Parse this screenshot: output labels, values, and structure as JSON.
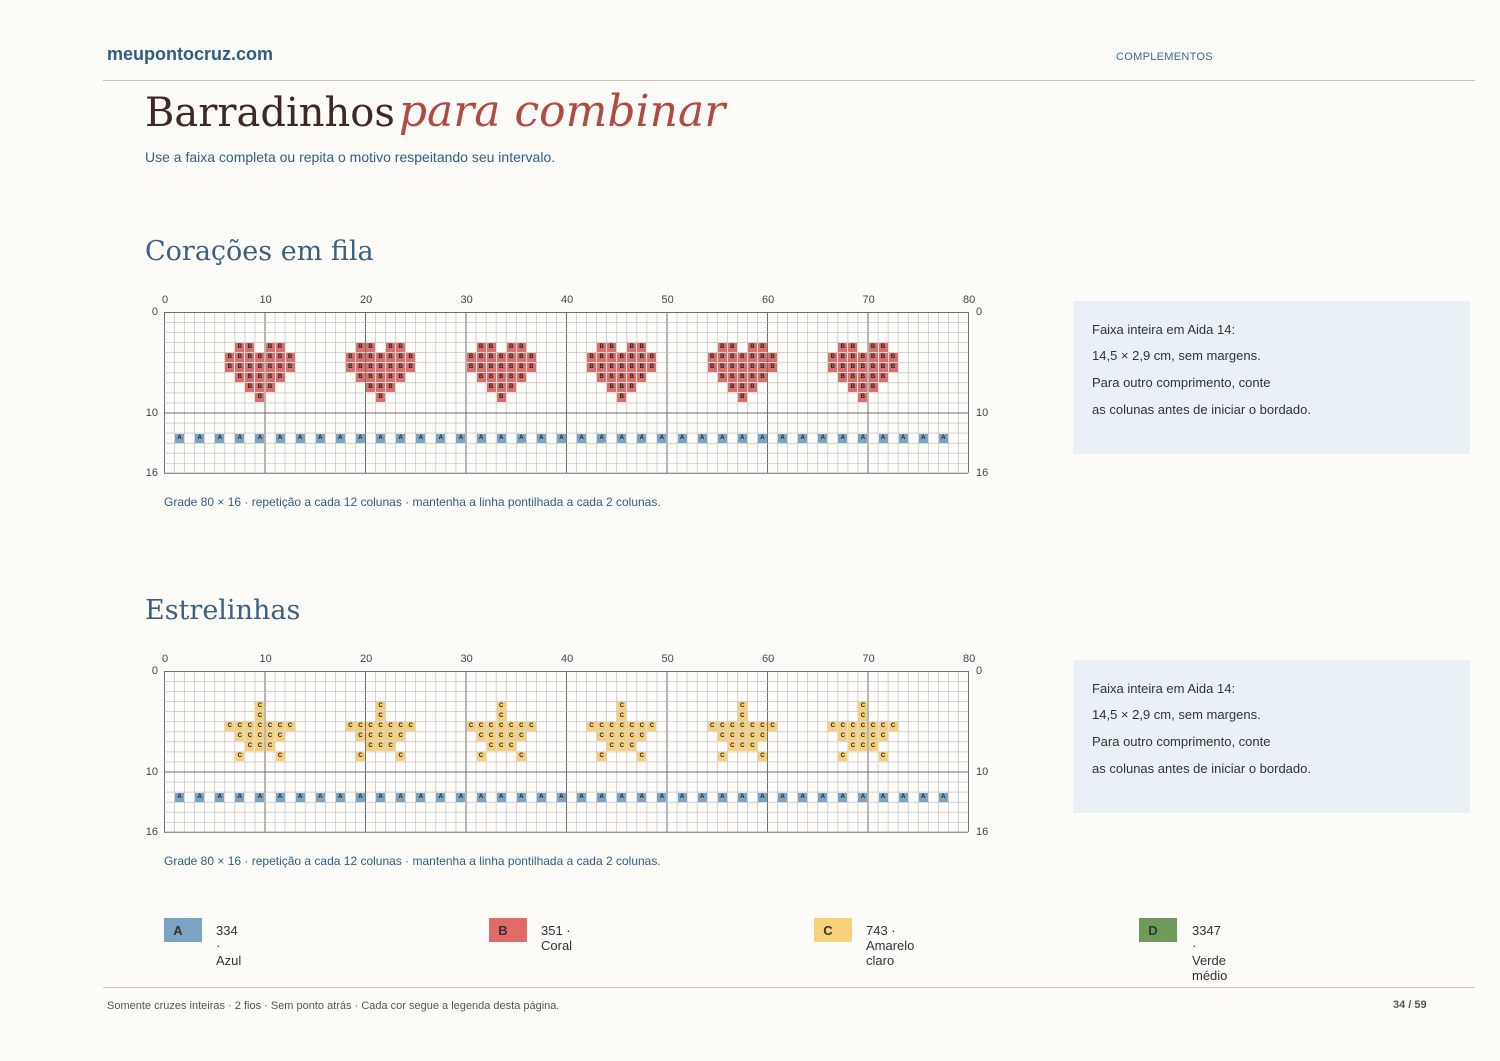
{
  "header": {
    "site": "meupontocruz.com",
    "section": "COMPLEMENTOS"
  },
  "title": {
    "main": "Barradinhos",
    "script": "para combinar"
  },
  "subtitle": "Use a faixa completa ou repita o motivo respeitando seu intervalo.",
  "charts": [
    {
      "title": "Corações em fila",
      "grid": {
        "cols": 80,
        "rows": 16
      },
      "x_ticks": [
        "0",
        "10",
        "20",
        "30",
        "40",
        "50",
        "60",
        "70",
        "80"
      ],
      "y_ticks": [
        "0",
        "10",
        "16"
      ],
      "motif_symbol": "B",
      "motif_color": "#d9706d",
      "motif_cells": [
        [
          1,
          3
        ],
        [
          2,
          3
        ],
        [
          4,
          3
        ],
        [
          5,
          3
        ],
        [
          0,
          4
        ],
        [
          1,
          4
        ],
        [
          2,
          4
        ],
        [
          3,
          4
        ],
        [
          4,
          4
        ],
        [
          5,
          4
        ],
        [
          6,
          4
        ],
        [
          0,
          5
        ],
        [
          1,
          5
        ],
        [
          2,
          5
        ],
        [
          3,
          5
        ],
        [
          4,
          5
        ],
        [
          5,
          5
        ],
        [
          6,
          5
        ],
        [
          1,
          6
        ],
        [
          2,
          6
        ],
        [
          3,
          6
        ],
        [
          4,
          6
        ],
        [
          5,
          6
        ],
        [
          2,
          7
        ],
        [
          3,
          7
        ],
        [
          4,
          7
        ],
        [
          3,
          8
        ]
      ],
      "motif_repeats": [
        6,
        18,
        30,
        42,
        54,
        66
      ],
      "border_symbol": "A",
      "border_color": "#7ba3c3",
      "border_row": 12,
      "border_cols": [
        1,
        3,
        5,
        7,
        9,
        11,
        13,
        15,
        17,
        19,
        21,
        23,
        25,
        27,
        29,
        31,
        33,
        35,
        37,
        39,
        41,
        43,
        45,
        47,
        49,
        51,
        53,
        55,
        57,
        59,
        61,
        63,
        65,
        67,
        69,
        71,
        73,
        75,
        77
      ],
      "caption": "Grade 80 × 16 · repetição a cada 12 colunas · mantenha a linha pontilhada a cada 2 colunas.",
      "info": [
        "Faixa inteira em Aida 14:",
        "14,5 × 2,9 cm, sem margens.",
        "Para outro comprimento, conte",
        "as colunas antes de iniciar o bordado."
      ]
    },
    {
      "title": "Estrelinhas",
      "grid": {
        "cols": 80,
        "rows": 16
      },
      "x_ticks": [
        "0",
        "10",
        "20",
        "30",
        "40",
        "50",
        "60",
        "70",
        "80"
      ],
      "y_ticks": [
        "0",
        "10",
        "16"
      ],
      "motif_symbol": "C",
      "motif_color": "#f7cf78",
      "motif_cells": [
        [
          3,
          3
        ],
        [
          3,
          4
        ],
        [
          0,
          5
        ],
        [
          1,
          5
        ],
        [
          2,
          5
        ],
        [
          3,
          5
        ],
        [
          4,
          5
        ],
        [
          5,
          5
        ],
        [
          6,
          5
        ],
        [
          1,
          6
        ],
        [
          2,
          6
        ],
        [
          3,
          6
        ],
        [
          4,
          6
        ],
        [
          5,
          6
        ],
        [
          2,
          7
        ],
        [
          3,
          7
        ],
        [
          4,
          7
        ],
        [
          1,
          8
        ],
        [
          5,
          8
        ]
      ],
      "motif_repeats": [
        6,
        18,
        30,
        42,
        54,
        66
      ],
      "border_symbol": "A",
      "border_color": "#7ba3c3",
      "border_row": 12,
      "border_cols": [
        1,
        3,
        5,
        7,
        9,
        11,
        13,
        15,
        17,
        19,
        21,
        23,
        25,
        27,
        29,
        31,
        33,
        35,
        37,
        39,
        41,
        43,
        45,
        47,
        49,
        51,
        53,
        55,
        57,
        59,
        61,
        63,
        65,
        67,
        69,
        71,
        73,
        75,
        77
      ],
      "caption": "Grade 80 × 16 · repetição a cada 12 colunas · mantenha a linha pontilhada a cada 2 colunas.",
      "info": [
        "Faixa inteira em Aida 14:",
        "14,5 × 2,9 cm, sem margens.",
        "Para outro comprimento, conte",
        "as colunas antes de iniciar o bordado."
      ]
    }
  ],
  "legend": [
    {
      "symbol": "A",
      "label": "334 · Azul",
      "color": "#7ba3c3"
    },
    {
      "symbol": "B",
      "label": "351 · Coral",
      "color": "#e06b68"
    },
    {
      "symbol": "C",
      "label": "743 · Amarelo claro",
      "color": "#fad17b"
    },
    {
      "symbol": "D",
      "label": "3347 · Verde médio",
      "color": "#6f9a5c"
    }
  ],
  "footer": {
    "note": "Somente cruzes inteiras · 2 fios · Sem ponto atrás · Cada cor segue a legenda desta página.",
    "page": "34 / 59"
  }
}
